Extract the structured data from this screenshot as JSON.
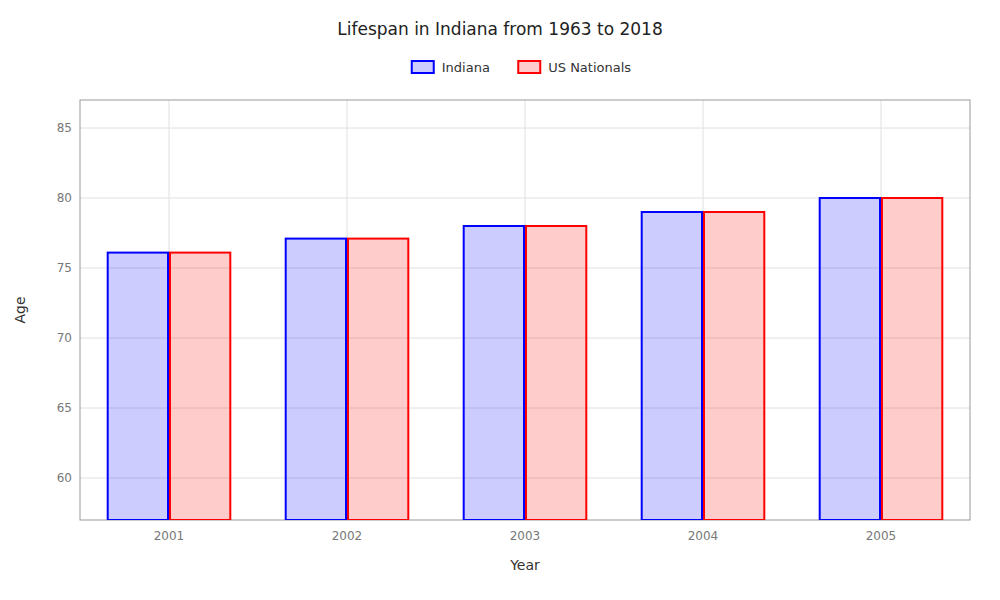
{
  "chart_data": {
    "type": "bar",
    "title": "Lifespan in Indiana from 1963 to 2018",
    "xlabel": "Year",
    "ylabel": "Age",
    "categories": [
      "2001",
      "2002",
      "2003",
      "2004",
      "2005"
    ],
    "series": [
      {
        "name": "Indiana",
        "color": "#0000ff",
        "values": [
          76.1,
          77.1,
          78.0,
          79.0,
          80.0
        ]
      },
      {
        "name": "US Nationals",
        "color": "#ff0000",
        "values": [
          76.1,
          77.1,
          78.0,
          79.0,
          80.0
        ]
      }
    ],
    "ylim": [
      57,
      87
    ],
    "yticks": [
      60,
      65,
      70,
      75,
      80,
      85
    ],
    "grid": true,
    "legend": "upper center"
  }
}
